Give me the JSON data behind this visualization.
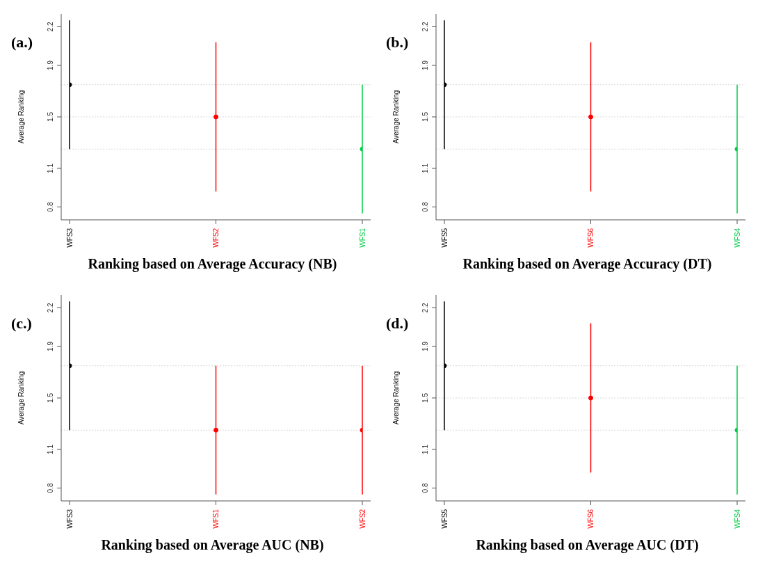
{
  "chart_data": [
    {
      "type": "scatter",
      "annotations": [
        "(a.)"
      ],
      "xlabel": "Ranking based on Average Accuracy (NB)",
      "ylabel": "Average Ranking",
      "categories": [
        "WFS3",
        "WFS2",
        "WFS1"
      ],
      "values": [
        1.75,
        1.5,
        1.25
      ],
      "errors": [
        0.5,
        0.58,
        0.5
      ],
      "colors": [
        "#000000",
        "#ff0000",
        "#00cc44"
      ],
      "ylim": [
        0.7,
        2.3
      ],
      "yticks": [
        0.8,
        1.1,
        1.5,
        1.9,
        2.2
      ],
      "marker": "circle",
      "grid": false,
      "ref_lines": [
        {
          "axis": "y",
          "value": 1.75,
          "color": "#d8d8d8",
          "line_style": "dotted"
        },
        {
          "axis": "y",
          "value": 1.5,
          "color": "#d8d8d8",
          "line_style": "dotted"
        },
        {
          "axis": "y",
          "value": 1.25,
          "color": "#d8d8d8",
          "line_style": "dotted"
        }
      ]
    },
    {
      "type": "scatter",
      "annotations": [
        "(b.)"
      ],
      "xlabel": "Ranking based on Average Accuracy (DT)",
      "ylabel": "Average Ranking",
      "categories": [
        "WFS5",
        "WFS6",
        "WFS4"
      ],
      "values": [
        1.75,
        1.5,
        1.25
      ],
      "errors": [
        0.5,
        0.58,
        0.5
      ],
      "colors": [
        "#000000",
        "#ff0000",
        "#00cc44"
      ],
      "ylim": [
        0.7,
        2.3
      ],
      "yticks": [
        0.8,
        1.1,
        1.5,
        1.9,
        2.2
      ],
      "marker": "circle",
      "grid": false,
      "ref_lines": [
        {
          "axis": "y",
          "value": 1.75,
          "color": "#d8d8d8",
          "line_style": "dotted"
        },
        {
          "axis": "y",
          "value": 1.5,
          "color": "#d8d8d8",
          "line_style": "dotted"
        },
        {
          "axis": "y",
          "value": 1.25,
          "color": "#d8d8d8",
          "line_style": "dotted"
        }
      ]
    },
    {
      "type": "scatter",
      "annotations": [
        "(c.)"
      ],
      "xlabel": "Ranking based on Average AUC (NB)",
      "ylabel": "Average Ranking",
      "categories": [
        "WFS3",
        "WFS1",
        "WFS2"
      ],
      "values": [
        1.75,
        1.25,
        1.25
      ],
      "errors": [
        0.5,
        0.5,
        0.5
      ],
      "colors": [
        "#000000",
        "#ff0000",
        "#ff0000"
      ],
      "ylim": [
        0.7,
        2.3
      ],
      "yticks": [
        0.8,
        1.1,
        1.5,
        1.9,
        2.2
      ],
      "marker": "circle",
      "grid": false,
      "ref_lines": [
        {
          "axis": "y",
          "value": 1.75,
          "color": "#d8d8d8",
          "line_style": "dotted"
        },
        {
          "axis": "y",
          "value": 1.25,
          "color": "#d8d8d8",
          "line_style": "dotted"
        }
      ]
    },
    {
      "type": "scatter",
      "annotations": [
        "(d.)"
      ],
      "xlabel": "Ranking based on Average AUC (DT)",
      "ylabel": "Average Ranking",
      "categories": [
        "WFS5",
        "WFS6",
        "WFS4"
      ],
      "values": [
        1.75,
        1.5,
        1.25
      ],
      "errors": [
        0.5,
        0.58,
        0.5
      ],
      "colors": [
        "#000000",
        "#ff0000",
        "#00cc44"
      ],
      "ylim": [
        0.7,
        2.3
      ],
      "yticks": [
        0.8,
        1.1,
        1.5,
        1.9,
        2.2
      ],
      "marker": "circle",
      "grid": false,
      "ref_lines": [
        {
          "axis": "y",
          "value": 1.75,
          "color": "#d8d8d8",
          "line_style": "dotted"
        },
        {
          "axis": "y",
          "value": 1.5,
          "color": "#d8d8d8",
          "line_style": "dotted"
        },
        {
          "axis": "y",
          "value": 1.25,
          "color": "#d8d8d8",
          "line_style": "dotted"
        }
      ]
    }
  ]
}
